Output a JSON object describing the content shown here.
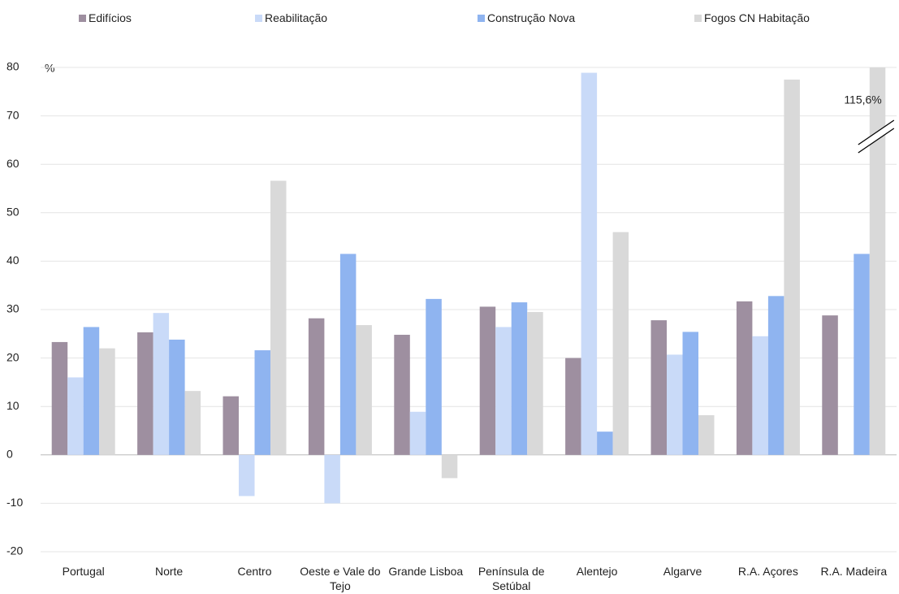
{
  "chart_data": {
    "type": "bar",
    "y_label": "%",
    "categories": [
      "Portugal",
      "Norte",
      "Centro",
      "Oeste e Vale do Tejo",
      "Grande Lisboa",
      "Península de Setúbal",
      "Alentejo",
      "Algarve",
      "R.A. Açores",
      "R.A. Madeira"
    ],
    "series": [
      {
        "name": "Edifícios",
        "color": "#9e8fa0",
        "values": [
          23.3,
          25.3,
          12.1,
          28.2,
          24.8,
          30.6,
          20.0,
          27.8,
          31.7,
          28.8
        ]
      },
      {
        "name": "Reabilitação",
        "color": "#c9daf8",
        "values": [
          16.0,
          29.3,
          -8.5,
          -10.0,
          8.9,
          26.4,
          78.9,
          20.7,
          24.5,
          null
        ]
      },
      {
        "name": "Construção Nova",
        "color": "#8fb4f0",
        "values": [
          26.4,
          23.8,
          21.6,
          41.5,
          32.2,
          31.5,
          4.8,
          25.4,
          32.8,
          41.5
        ]
      },
      {
        "name": "Fogos CN Habitação",
        "color": "#d9d9d9",
        "values": [
          22.0,
          13.2,
          56.6,
          26.8,
          -4.8,
          29.5,
          46.0,
          8.2,
          77.5,
          115.6
        ],
        "value_labels": [
          null,
          null,
          null,
          null,
          null,
          null,
          null,
          null,
          null,
          "115,6%"
        ]
      }
    ],
    "ylim": [
      -20,
      80
    ],
    "yticks": [
      -20,
      -10,
      0,
      10,
      20,
      30,
      40,
      50,
      60,
      70,
      80
    ],
    "grid": true
  }
}
